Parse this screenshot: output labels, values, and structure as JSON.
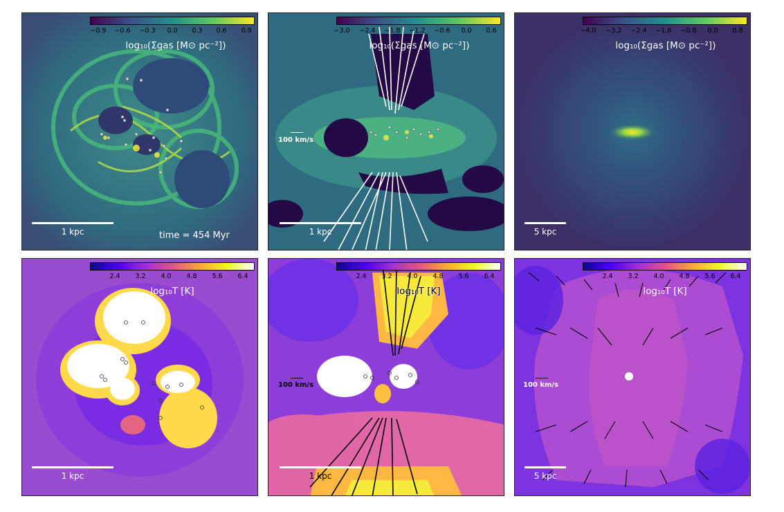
{
  "row1": {
    "p1": {
      "cbar_ticks": [
        "−0.9",
        "−0.6",
        "−0.3",
        "0.0",
        "0.3",
        "0.6",
        "0.9"
      ],
      "cbar_label": "log₁₀(Σgas [M⊙ pc⁻²])",
      "scale_label": "1 kpc",
      "time_label": "time = 454 Myr"
    },
    "p2": {
      "cbar_ticks": [
        "−3.0",
        "−2.4",
        "−1.8",
        "−1.2",
        "−0.6",
        "0.0",
        "0.6"
      ],
      "cbar_label": "log₁₀(Σgas [M⊙ pc⁻²])",
      "scale_label": "1 kpc",
      "vel_label": "100 km/s"
    },
    "p3": {
      "cbar_ticks": [
        "−4.0",
        "−3.2",
        "−2.4",
        "−1.6",
        "−0.8",
        "0.0",
        "0.8"
      ],
      "cbar_label": "log₁₀(Σgas [M⊙ pc⁻²])",
      "scale_label": "5 kpc"
    }
  },
  "row2": {
    "p4": {
      "cbar_ticks": [
        "2.4",
        "3.2",
        "4.0",
        "4.8",
        "5.6",
        "6.4"
      ],
      "cbar_label": "log₁₀T [K]",
      "scale_label": "1 kpc"
    },
    "p5": {
      "cbar_ticks": [
        "2.4",
        "3.2",
        "4.0",
        "4.8",
        "5.6",
        "6.4"
      ],
      "cbar_label": "log₁₀T [K]",
      "scale_label": "1 kpc",
      "vel_label": "100 km/s"
    },
    "p6": {
      "cbar_ticks": [
        "2.4",
        "3.2",
        "4.0",
        "4.8",
        "5.6",
        "6.4"
      ],
      "cbar_label": "log₁₀T [K]",
      "scale_label": "5 kpc",
      "vel_label": "100 km/s"
    }
  },
  "colors": {
    "viridis_dark": "#3b2d5e",
    "viridis_bg": "#2b6a7e",
    "viridis_green": "#3fb57d",
    "viridis_yellow": "#fde725",
    "plasma_purple": "#7a2ee6",
    "plasma_magenta": "#c64fd6",
    "plasma_yellow": "#fde63a",
    "plasma_white": "#ffffff"
  }
}
